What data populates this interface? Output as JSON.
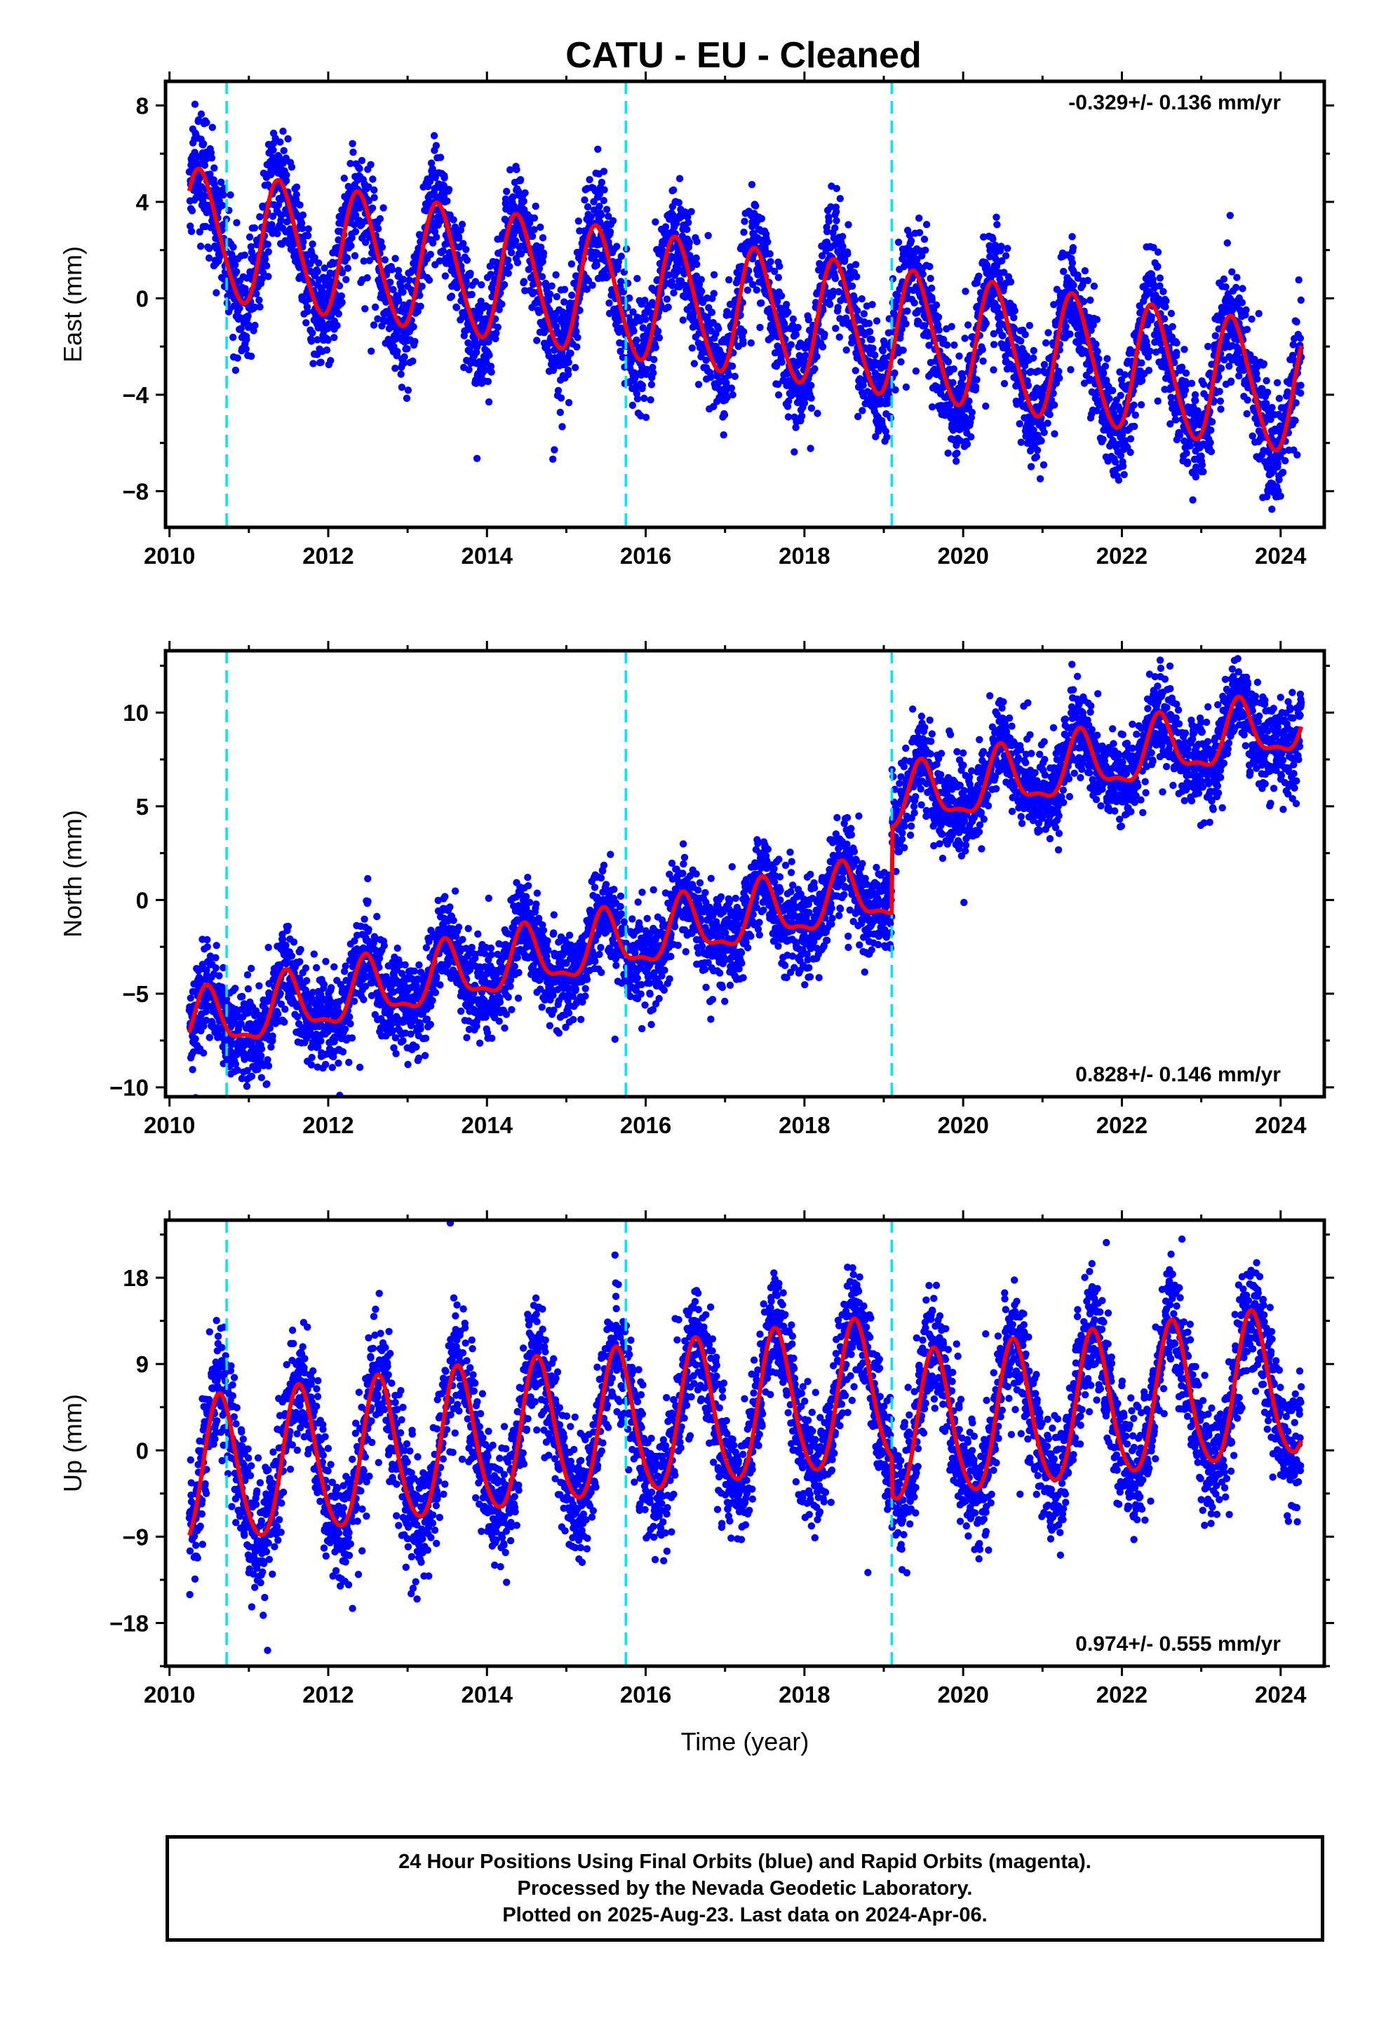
{
  "figure_title": "CATU  - EU - Cleaned",
  "caption_lines": [
    "24 Hour Positions Using Final Orbits (blue) and Rapid Orbits (magenta).",
    "Processed by the Nevada Geodetic Laboratory.",
    "Plotted on 2025-Aug-23. Last data on 2024-Apr-06."
  ],
  "colors": {
    "final_orbits_points": "#0000ff",
    "model_fit": "#ff0000",
    "equipment_change_lines": "#00e5ff",
    "frame": "#000000"
  },
  "chart_data": [
    {
      "type": "scatter",
      "title": "CATU  - EU - Cleaned",
      "xlabel": "",
      "ylabel": "East (mm)",
      "xlim": [
        2009.95,
        2024.55
      ],
      "ylim": [
        -9.5,
        9.0
      ],
      "xticks": [
        2010,
        2012,
        2014,
        2016,
        2018,
        2020,
        2022,
        2024
      ],
      "yticks": [
        -8,
        -4,
        0,
        4,
        8
      ],
      "rate_text": "-0.329+/- 0.136 mm/yr",
      "rate_position": "top-right",
      "x_range_data": [
        2010.25,
        2024.26
      ],
      "break_lines": [
        2010.72,
        2015.75,
        2019.1
      ],
      "model": {
        "offset_at_2010": 2.8,
        "trend_mm_per_yr": -0.329,
        "annual_amplitude": 2.6,
        "annual_peak": 0.4,
        "semiannual_amplitude": 0.3,
        "semiannual_peak": 0.3,
        "extra_trend_mm_per_yr": -0.14,
        "offsets": [
          {
            "t": 2019.1,
            "value": 0
          }
        ]
      },
      "scatter_sigma": 1.15,
      "fit_color": "#ff0000",
      "point_color": "#0000ff"
    },
    {
      "type": "scatter",
      "xlabel": "",
      "ylabel": "North (mm)",
      "xlim": [
        2009.95,
        2024.55
      ],
      "ylim": [
        -10.5,
        13.3
      ],
      "xticks": [
        2010,
        2012,
        2014,
        2016,
        2018,
        2020,
        2022,
        2024
      ],
      "yticks": [
        -10,
        -5,
        0,
        5,
        10
      ],
      "rate_text": "0.828+/- 0.146 mm/yr",
      "rate_position": "bottom-right",
      "x_range_data": [
        2010.25,
        2024.26
      ],
      "break_lines": [
        2010.72,
        2015.75,
        2019.1
      ],
      "model": {
        "offset_at_2010": -7.0,
        "trend_mm_per_yr": 0.828,
        "annual_amplitude": 1.55,
        "annual_peak": 0.48,
        "semiannual_amplitude": 0.55,
        "semiannual_peak": 0.46,
        "extra_trend_mm_per_yr": 0.0,
        "offsets": [
          {
            "t": 2019.1,
            "value": 4.6
          }
        ]
      },
      "scatter_sigma": 1.2,
      "fit_color": "#ff0000",
      "point_color": "#0000ff"
    },
    {
      "type": "scatter",
      "xlabel": "Time (year)",
      "ylabel": "Up (mm)",
      "xlim": [
        2009.95,
        2024.55
      ],
      "ylim": [
        -22.5,
        24.0
      ],
      "xticks": [
        2010,
        2012,
        2014,
        2016,
        2018,
        2020,
        2022,
        2024
      ],
      "yticks": [
        -18,
        -9,
        0,
        9,
        18
      ],
      "rate_text": "0.974+/- 0.555 mm/yr",
      "rate_position": "bottom-right",
      "x_range_data": [
        2010.25,
        2024.26
      ],
      "break_lines": [
        2010.72,
        2015.75,
        2019.1
      ],
      "model": {
        "offset_at_2010": -3.0,
        "trend_mm_per_yr": 0.974,
        "annual_amplitude": 7.6,
        "annual_peak": 0.64,
        "semiannual_amplitude": 0.8,
        "semiannual_peak": 0.6,
        "extra_trend_mm_per_yr": 0.0,
        "offsets": [
          {
            "t": 2019.1,
            "value": -4.0
          }
        ]
      },
      "scatter_sigma": 3.2,
      "fit_color": "#ff0000",
      "point_color": "#0000ff"
    }
  ]
}
